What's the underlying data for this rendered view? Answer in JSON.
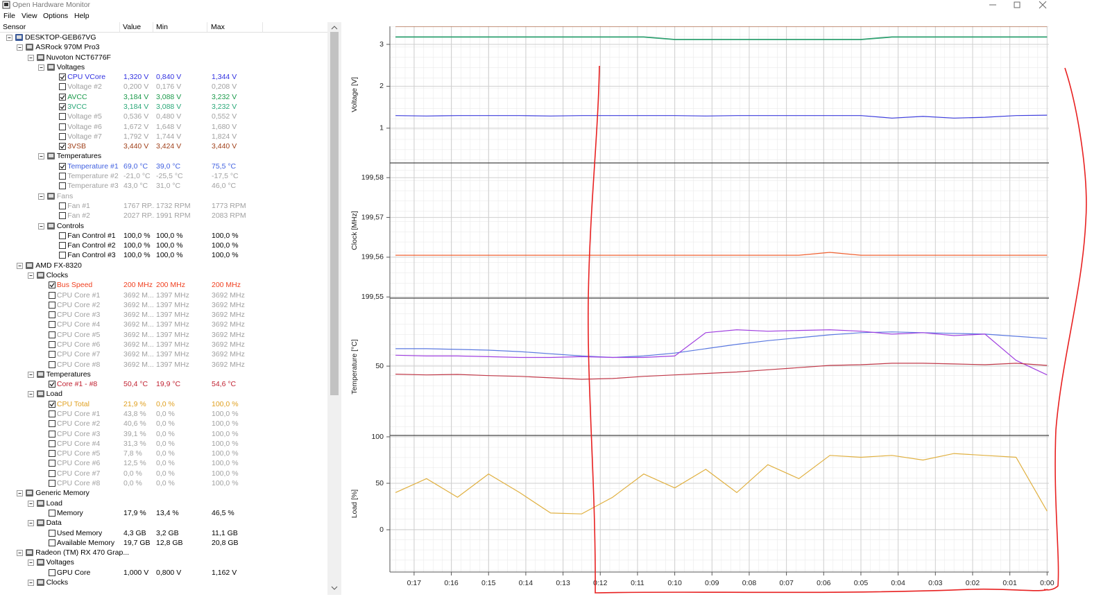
{
  "window": {
    "title": "Open Hardware Monitor"
  },
  "menu": [
    "File",
    "View",
    "Options",
    "Help"
  ],
  "tree": {
    "columns": [
      "Sensor",
      "Value",
      "Min",
      "Max"
    ],
    "rows": [
      {
        "label": "DESKTOP-GEB67VG",
        "depth": 0
      },
      {
        "label": "ASRock 970M Pro3",
        "depth": 1
      },
      {
        "label": "Nuvoton NCT6776F",
        "depth": 2
      },
      {
        "label": "Voltages",
        "depth": 3
      },
      {
        "label": "CPU VCore",
        "value": "1,320 V",
        "min": "0,840 V",
        "max": "1,344 V",
        "depth": 4,
        "checked": true,
        "color": "#3030e0"
      },
      {
        "label": "Voltage #2",
        "value": "0,200 V",
        "min": "0,176 V",
        "max": "0,208 V",
        "depth": 4,
        "checked": false,
        "color": "#a0a0a0"
      },
      {
        "label": "AVCC",
        "value": "3,184 V",
        "min": "3,088 V",
        "max": "3,232 V",
        "depth": 4,
        "checked": true,
        "color": "#1a9a4a"
      },
      {
        "label": "3VCC",
        "value": "3,184 V",
        "min": "3,088 V",
        "max": "3,232 V",
        "depth": 4,
        "checked": true,
        "color": "#2aa878"
      },
      {
        "label": "Voltage #5",
        "value": "0,536 V",
        "min": "0,480 V",
        "max": "0,552 V",
        "depth": 4,
        "checked": false,
        "color": "#a0a0a0"
      },
      {
        "label": "Voltage #6",
        "value": "1,672 V",
        "min": "1,648 V",
        "max": "1,680 V",
        "depth": 4,
        "checked": false,
        "color": "#a0a0a0"
      },
      {
        "label": "Voltage #7",
        "value": "1,792 V",
        "min": "1,744 V",
        "max": "1,824 V",
        "depth": 4,
        "checked": false,
        "color": "#a0a0a0"
      },
      {
        "label": "3VSB",
        "value": "3,440 V",
        "min": "3,424 V",
        "max": "3,440 V",
        "depth": 4,
        "checked": true,
        "color": "#a0401a"
      },
      {
        "label": "Temperatures",
        "depth": 3
      },
      {
        "label": "Temperature #1",
        "value": "69,0 °C",
        "min": "39,0 °C",
        "max": "75,5 °C",
        "depth": 4,
        "checked": true,
        "color": "#4060e0"
      },
      {
        "label": "Temperature #2",
        "value": "-21,0 °C",
        "min": "-25,5 °C",
        "max": "-17,5 °C",
        "depth": 4,
        "checked": false,
        "color": "#a0a0a0"
      },
      {
        "label": "Temperature #3",
        "value": "43,0 °C",
        "min": "31,0 °C",
        "max": "46,0 °C",
        "depth": 4,
        "checked": false,
        "color": "#a0a0a0"
      },
      {
        "label": "Fans",
        "depth": 3,
        "color": "#a0a0a0"
      },
      {
        "label": "Fan #1",
        "value": "1767 RP...",
        "min": "1732 RPM",
        "max": "1773 RPM",
        "depth": 4,
        "checked": false,
        "color": "#a0a0a0"
      },
      {
        "label": "Fan #2",
        "value": "2027 RP...",
        "min": "1991 RPM",
        "max": "2083 RPM",
        "depth": 4,
        "checked": false,
        "color": "#a0a0a0"
      },
      {
        "label": "Controls",
        "depth": 3
      },
      {
        "label": "Fan Control #1",
        "value": "100,0 %",
        "min": "100,0 %",
        "max": "100,0 %",
        "depth": 4,
        "checked": false
      },
      {
        "label": "Fan Control #2",
        "value": "100,0 %",
        "min": "100,0 %",
        "max": "100,0 %",
        "depth": 4,
        "checked": false
      },
      {
        "label": "Fan Control #3",
        "value": "100,0 %",
        "min": "100,0 %",
        "max": "100,0 %",
        "depth": 4,
        "checked": false
      },
      {
        "label": "AMD FX-8320",
        "depth": 1
      },
      {
        "label": "Clocks",
        "depth": 2
      },
      {
        "label": "Bus Speed",
        "value": "200 MHz",
        "min": "200 MHz",
        "max": "200 MHz",
        "depth": 3,
        "checked": true,
        "color": "#f04020"
      },
      {
        "label": "CPU Core #1",
        "value": "3692 M...",
        "min": "1397 MHz",
        "max": "3692 MHz",
        "depth": 3,
        "checked": false,
        "color": "#a0a0a0"
      },
      {
        "label": "CPU Core #2",
        "value": "3692 M...",
        "min": "1397 MHz",
        "max": "3692 MHz",
        "depth": 3,
        "checked": false,
        "color": "#a0a0a0"
      },
      {
        "label": "CPU Core #3",
        "value": "3692 M...",
        "min": "1397 MHz",
        "max": "3692 MHz",
        "depth": 3,
        "checked": false,
        "color": "#a0a0a0"
      },
      {
        "label": "CPU Core #4",
        "value": "3692 M...",
        "min": "1397 MHz",
        "max": "3692 MHz",
        "depth": 3,
        "checked": false,
        "color": "#a0a0a0"
      },
      {
        "label": "CPU Core #5",
        "value": "3692 M...",
        "min": "1397 MHz",
        "max": "3692 MHz",
        "depth": 3,
        "checked": false,
        "color": "#a0a0a0"
      },
      {
        "label": "CPU Core #6",
        "value": "3692 M...",
        "min": "1397 MHz",
        "max": "3692 MHz",
        "depth": 3,
        "checked": false,
        "color": "#a0a0a0"
      },
      {
        "label": "CPU Core #7",
        "value": "3692 M...",
        "min": "1397 MHz",
        "max": "3692 MHz",
        "depth": 3,
        "checked": false,
        "color": "#a0a0a0"
      },
      {
        "label": "CPU Core #8",
        "value": "3692 M...",
        "min": "1397 MHz",
        "max": "3692 MHz",
        "depth": 3,
        "checked": false,
        "color": "#a0a0a0"
      },
      {
        "label": "Temperatures",
        "depth": 2
      },
      {
        "label": "Core #1 - #8",
        "value": "50,4 °C",
        "min": "19,9 °C",
        "max": "54,6 °C",
        "depth": 3,
        "checked": true,
        "color": "#c02030"
      },
      {
        "label": "Load",
        "depth": 2
      },
      {
        "label": "CPU Total",
        "value": "21,9 %",
        "min": "0,0 %",
        "max": "100,0 %",
        "depth": 3,
        "checked": true,
        "color": "#e0a020"
      },
      {
        "label": "CPU Core #1",
        "value": "43,8 %",
        "min": "0,0 %",
        "max": "100,0 %",
        "depth": 3,
        "checked": false,
        "color": "#a0a0a0"
      },
      {
        "label": "CPU Core #2",
        "value": "40,6 %",
        "min": "0,0 %",
        "max": "100,0 %",
        "depth": 3,
        "checked": false,
        "color": "#a0a0a0"
      },
      {
        "label": "CPU Core #3",
        "value": "39,1 %",
        "min": "0,0 %",
        "max": "100,0 %",
        "depth": 3,
        "checked": false,
        "color": "#a0a0a0"
      },
      {
        "label": "CPU Core #4",
        "value": "31,3 %",
        "min": "0,0 %",
        "max": "100,0 %",
        "depth": 3,
        "checked": false,
        "color": "#a0a0a0"
      },
      {
        "label": "CPU Core #5",
        "value": "7,8 %",
        "min": "0,0 %",
        "max": "100,0 %",
        "depth": 3,
        "checked": false,
        "color": "#a0a0a0"
      },
      {
        "label": "CPU Core #6",
        "value": "12,5 %",
        "min": "0,0 %",
        "max": "100,0 %",
        "depth": 3,
        "checked": false,
        "color": "#a0a0a0"
      },
      {
        "label": "CPU Core #7",
        "value": "0,0 %",
        "min": "0,0 %",
        "max": "100,0 %",
        "depth": 3,
        "checked": false,
        "color": "#a0a0a0"
      },
      {
        "label": "CPU Core #8",
        "value": "0,0 %",
        "min": "0,0 %",
        "max": "100,0 %",
        "depth": 3,
        "checked": false,
        "color": "#a0a0a0"
      },
      {
        "label": "Generic Memory",
        "depth": 1
      },
      {
        "label": "Load",
        "depth": 2
      },
      {
        "label": "Memory",
        "value": "17,9 %",
        "min": "13,4 %",
        "max": "46,5 %",
        "depth": 3,
        "checked": false
      },
      {
        "label": "Data",
        "depth": 2
      },
      {
        "label": "Used Memory",
        "value": "4,3 GB",
        "min": "3,2 GB",
        "max": "11,1 GB",
        "depth": 3,
        "checked": false
      },
      {
        "label": "Available Memory",
        "value": "19,7 GB",
        "min": "12,8 GB",
        "max": "20,8 GB",
        "depth": 3,
        "checked": false
      },
      {
        "label": "Radeon (TM) RX 470 Grap...",
        "depth": 1
      },
      {
        "label": "Voltages",
        "depth": 2
      },
      {
        "label": "GPU Core",
        "value": "1,000 V",
        "min": "0,800 V",
        "max": "1,162 V",
        "depth": 3,
        "checked": false
      },
      {
        "label": "Clocks",
        "depth": 2
      }
    ]
  },
  "plot": {
    "x": [
      1050,
      1000,
      950,
      900,
      850,
      800,
      750,
      700,
      650,
      600,
      550,
      500,
      450,
      400,
      350,
      300,
      250,
      200,
      150,
      100,
      50,
      0
    ],
    "xlim": [
      1059,
      -3
    ],
    "xticks": [
      {
        "value": 1020,
        "label": "0:17"
      },
      {
        "value": 960,
        "label": "0:16"
      },
      {
        "value": 900,
        "label": "0:15"
      },
      {
        "value": 840,
        "label": "0:14"
      },
      {
        "value": 780,
        "label": "0:13"
      },
      {
        "value": 720,
        "label": "0:12"
      },
      {
        "value": 660,
        "label": "0:11"
      },
      {
        "value": 600,
        "label": "0:10"
      },
      {
        "value": 540,
        "label": "0:09"
      },
      {
        "value": 480,
        "label": "0:08"
      },
      {
        "value": 420,
        "label": "0:07"
      },
      {
        "value": 360,
        "label": "0:06"
      },
      {
        "value": 300,
        "label": "0:05"
      },
      {
        "value": 240,
        "label": "0:04"
      },
      {
        "value": 180,
        "label": "0:03"
      },
      {
        "value": 120,
        "label": "0:02"
      },
      {
        "value": 60,
        "label": "0:01"
      },
      {
        "value": 0,
        "label": "0:00"
      }
    ],
    "panels": [
      {
        "ylabel": "Voltage [V]",
        "ylim": [
          0.17,
          3.43
        ],
        "yticks": [
          1,
          2,
          3
        ],
        "series": [
          {
            "color": "#3c3cdc",
            "values": [
              1.3,
              1.29,
              1.3,
              1.3,
              1.3,
              1.29,
              1.3,
              1.3,
              1.3,
              1.3,
              1.29,
              1.3,
              1.3,
              1.3,
              1.3,
              1.3,
              1.24,
              1.28,
              1.24,
              1.26,
              1.3,
              1.31
            ]
          },
          {
            "color": "#1e9060",
            "values": [
              3.18,
              3.18,
              3.18,
              3.18,
              3.18,
              3.18,
              3.18,
              3.18,
              3.18,
              3.12,
              3.12,
              3.12,
              3.12,
              3.12,
              3.12,
              3.12,
              3.18,
              3.18,
              3.18,
              3.18,
              3.18,
              3.18
            ]
          },
          {
            "color": "#36a878",
            "values": [
              3.17,
              3.17,
              3.17,
              3.17,
              3.17,
              3.17,
              3.17,
              3.17,
              3.17,
              3.11,
              3.11,
              3.11,
              3.11,
              3.11,
              3.11,
              3.11,
              3.17,
              3.17,
              3.17,
              3.17,
              3.17,
              3.17
            ]
          },
          {
            "color": "#a0522d",
            "values": [
              3.43,
              3.43,
              3.43,
              3.43,
              3.43,
              3.43,
              3.43,
              3.43,
              3.43,
              3.43,
              3.43,
              3.43,
              3.43,
              3.43,
              3.43,
              3.43,
              3.43,
              3.43,
              3.43,
              3.43,
              3.43,
              3.43
            ]
          }
        ]
      },
      {
        "ylabel": "Clock [MHz]",
        "ylim": [
          199.5497,
          199.5837
        ],
        "yticks": [
          {
            "value": 199.58,
            "label": "199,58"
          },
          {
            "value": 199.57,
            "label": "199,57"
          },
          {
            "value": 199.56,
            "label": "199,56"
          },
          {
            "value": 199.55,
            "label": "199,55"
          }
        ],
        "series": [
          {
            "color": "#f06030",
            "values": [
              199.5605,
              199.5605,
              199.5605,
              199.5605,
              199.5605,
              199.5605,
              199.5605,
              199.5605,
              199.5605,
              199.5605,
              199.5605,
              199.5605,
              199.5605,
              199.5605,
              199.5612,
              199.5605,
              199.5605,
              199.5605,
              199.5605,
              199.5605,
              199.5605,
              199.5605
            ]
          }
        ]
      },
      {
        "ylabel": "Temperature [°C]",
        "ylim": [
          2.4,
          96.7
        ],
        "yticks": [
          50
        ],
        "series": [
          {
            "color": "#5a78e0",
            "values": [
              62,
              62,
              61.5,
              61,
              60,
              58.5,
              57,
              56,
              57,
              59,
              62,
              65,
              67.5,
              69.5,
              71.5,
              73,
              73.5,
              73,
              72.5,
              72,
              70.5,
              69
            ]
          },
          {
            "color": "#a040e0",
            "values": [
              57.5,
              57,
              57,
              56.5,
              56,
              56,
              56.5,
              56,
              56,
              57,
              73,
              75,
              74,
              74.5,
              75,
              74,
              72,
              73,
              71,
              72,
              54,
              44
            ]
          },
          {
            "color": "#c03848",
            "values": [
              44.5,
              44,
              44.3,
              43.5,
              43,
              42,
              41,
              41.5,
              43,
              44,
              45,
              46,
              47.5,
              49,
              50.5,
              51,
              52,
              52,
              51.5,
              51,
              52,
              50.5
            ]
          }
        ]
      },
      {
        "ylabel": "Load [%]",
        "ylim": [
          -45.5,
          101.5
        ],
        "yticks": [
          0,
          50,
          100
        ],
        "series": [
          {
            "color": "#e0b040",
            "values": [
              40,
              55,
              35,
              60,
              40,
              18,
              17,
              35,
              60,
              45,
              65,
              40,
              70,
              55,
              80,
              78,
              80,
              75,
              82,
              80,
              78,
              20
            ]
          }
        ]
      }
    ]
  }
}
